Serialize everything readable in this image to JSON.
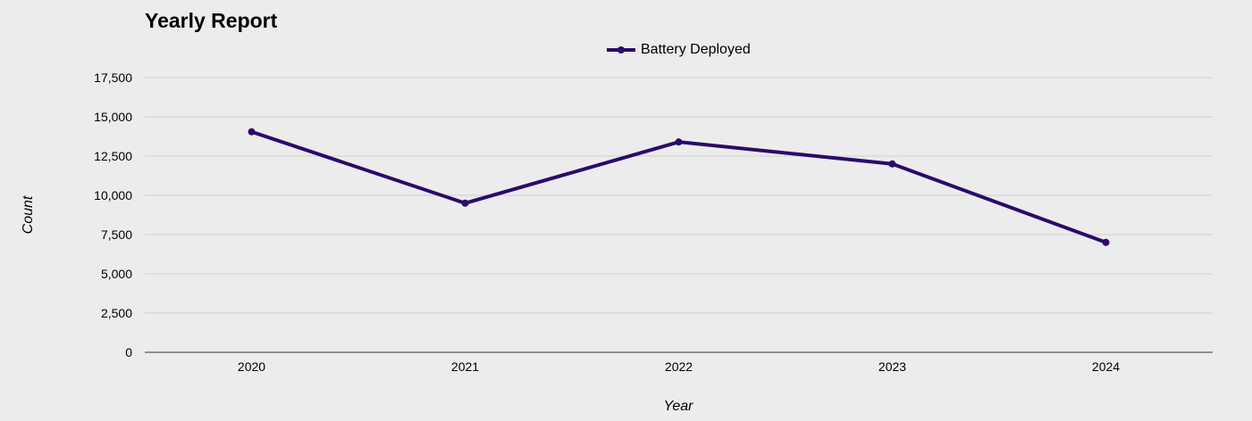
{
  "chart_data": {
    "type": "line",
    "title": "Yearly Report",
    "xlabel": "Year",
    "ylabel": "Count",
    "categories": [
      "2020",
      "2021",
      "2022",
      "2023",
      "2024"
    ],
    "series": [
      {
        "name": "Battery Deployed",
        "values": [
          14050,
          9500,
          13400,
          12000,
          7000
        ],
        "color": "#2a0a6b"
      }
    ],
    "ylim": [
      0,
      17500
    ],
    "yticks": [
      0,
      2500,
      5000,
      7500,
      10000,
      12500,
      15000,
      17500
    ],
    "ytick_labels": [
      "0",
      "2,500",
      "5,000",
      "7,500",
      "10,000",
      "12,500",
      "15,000",
      "17,500"
    ],
    "grid": true,
    "legend_position": "top-center"
  }
}
